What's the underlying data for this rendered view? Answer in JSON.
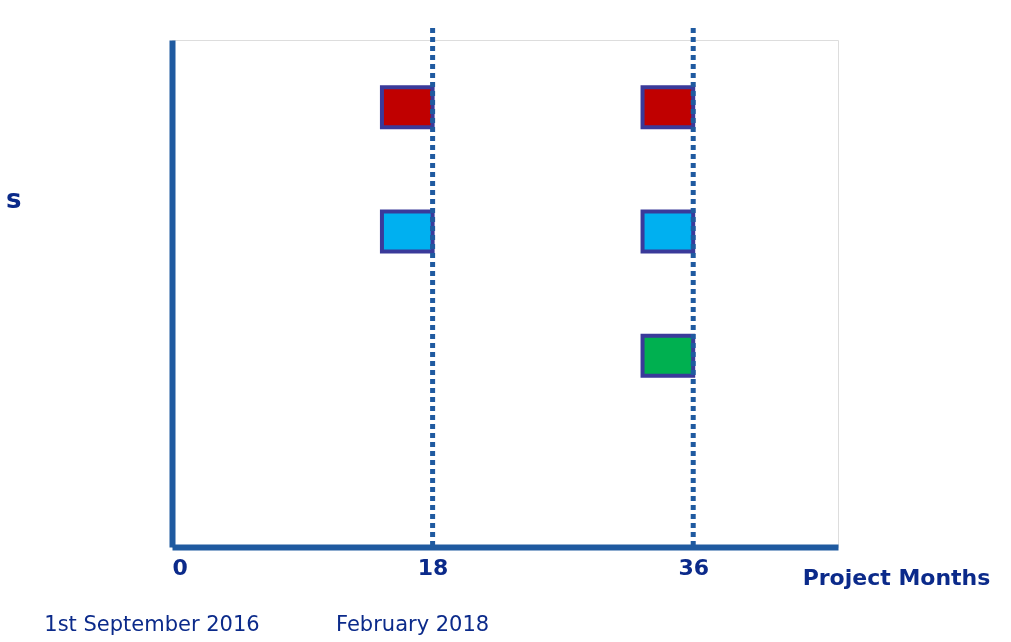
{
  "chart_data": {
    "type": "bar",
    "orientation": "horizontal",
    "xlabel": "Project Months",
    "grid": false,
    "legend": false,
    "tick_labels": "x",
    "categories": [
      null,
      null,
      null,
      null
    ],
    "xlim": [
      0,
      46
    ],
    "xticks": [
      0,
      18,
      36
    ],
    "series": [
      {
        "colors": [
          "#c00000",
          "#00b0f0",
          null,
          null
        ],
        "base": [
          14.5,
          14.5,
          null,
          null
        ],
        "values": [
          3.5,
          3.5,
          null,
          null
        ]
      },
      {
        "colors": [
          "#c00000",
          "#00b0f0",
          "#00b050",
          null
        ],
        "base": [
          32.5,
          32.5,
          32.5,
          null
        ],
        "values": [
          3.5,
          3.5,
          3.5,
          null
        ]
      }
    ],
    "ref_lines": [
      {
        "axis": "x",
        "value": 18,
        "color": "#1f5aa0",
        "line_style": "dotted"
      },
      {
        "axis": "x",
        "value": 36,
        "color": "#1f5aa0",
        "line_style": "dotted"
      }
    ],
    "annotations": [
      "s",
      "1st September 2016",
      "February 2018"
    ]
  }
}
